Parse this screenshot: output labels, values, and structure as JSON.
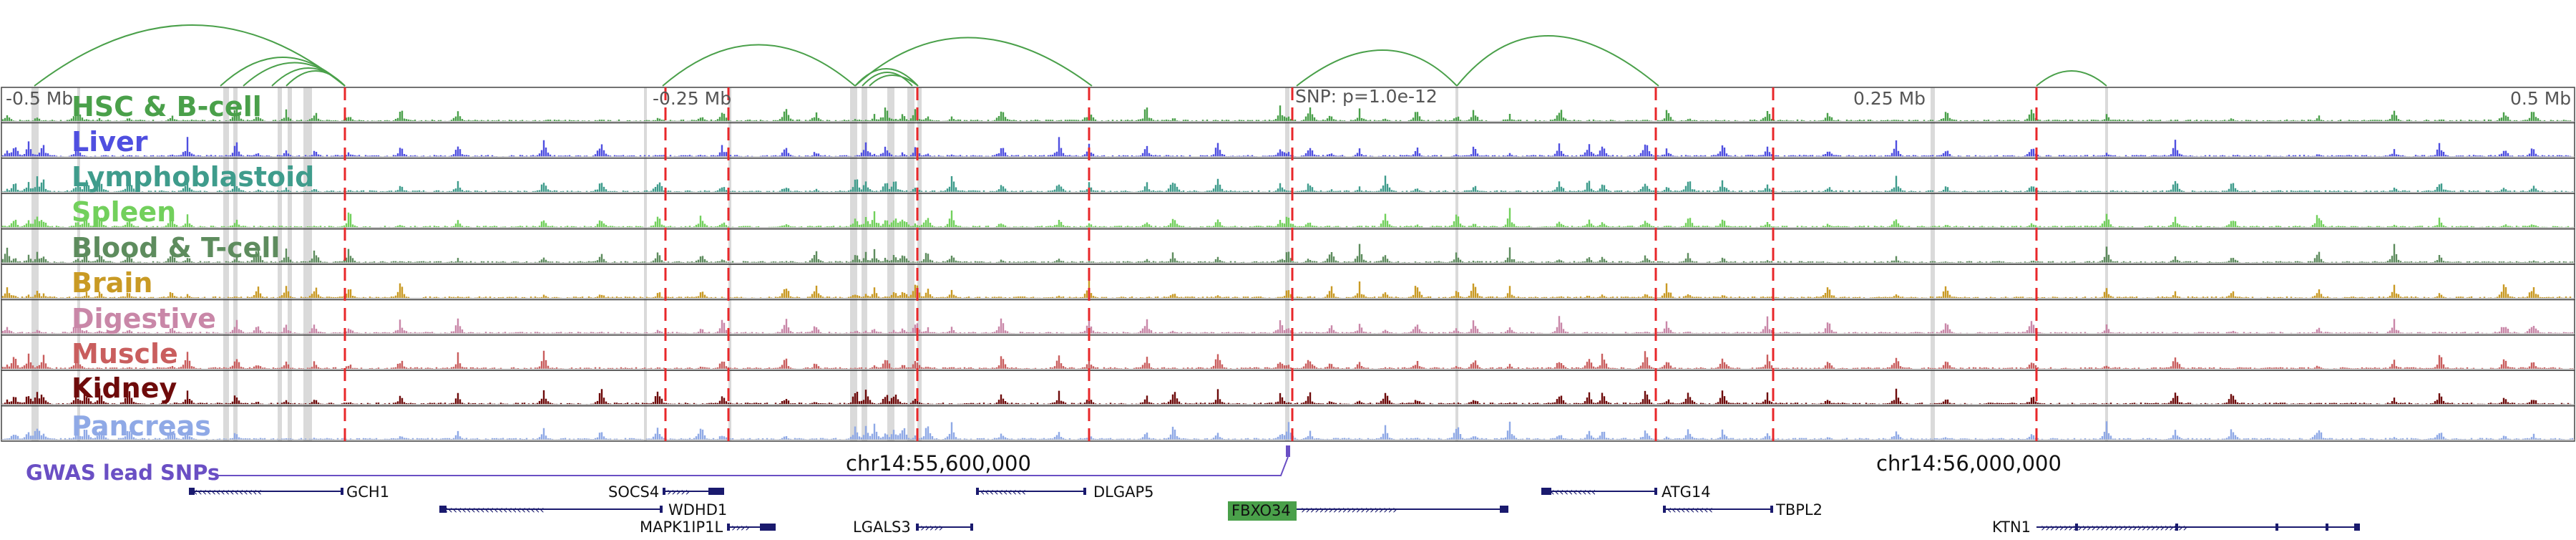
{
  "tracks": [
    {
      "label": "HSC & B-cell",
      "color": "#4aa04a"
    },
    {
      "label": "Liver",
      "color": "#4f4fe0"
    },
    {
      "label": "Lymphoblastoid",
      "color": "#3f9c8c"
    },
    {
      "label": "Spleen",
      "color": "#72d05c"
    },
    {
      "label": "Blood & T-cell",
      "color": "#5e8c5e"
    },
    {
      "label": "Brain",
      "color": "#c99a24"
    },
    {
      "label": "Digestive",
      "color": "#c987a8"
    },
    {
      "label": "Muscle",
      "color": "#c95e5e"
    },
    {
      "label": "Kidney",
      "color": "#6e0b0b"
    },
    {
      "label": "Pancreas",
      "color": "#8fa9e6"
    }
  ],
  "axis_labels": {
    "minus_half": "-0.5 Mb",
    "minus_quarter": "-0.25 Mb",
    "snp": "SNP: p=1.0e-12",
    "plus_quarter": "0.25 Mb",
    "plus_half": "0.5 Mb"
  },
  "coordinates": {
    "left": "chr14:55,600,000",
    "right": "chr14:56,000,000"
  },
  "gwas_label": "GWAS lead SNPs",
  "genes": {
    "gch1": "GCH1",
    "socs4": "SOCS4",
    "wdhd1": "WDHD1",
    "mapk1ip1l": "MAPK1IP1L",
    "lgals3": "LGALS3",
    "dlgap5": "DLGAP5",
    "fbxo34": "FBXO34",
    "atg14": "ATG14",
    "tbpl2": "TBPL2",
    "ktn1": "KTN1"
  },
  "colors": {
    "loop": "#4aa04a",
    "highlight_line": "#e8272a",
    "gwas": "#6a4fc4",
    "gene": "#1a1a6e",
    "fbxo34_bg": "#4aa04a"
  }
}
